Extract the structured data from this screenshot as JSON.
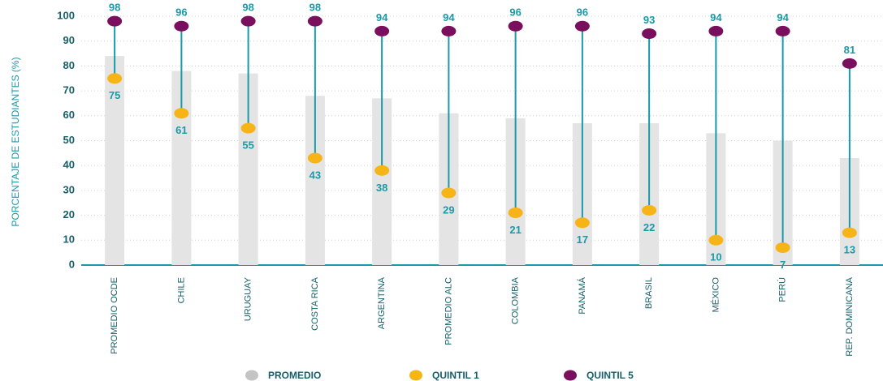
{
  "chart_data": {
    "type": "dumbbell",
    "ylabel": "PORCENTAJE DE ESTUDIANTES (%)",
    "categories": [
      "PROMEDIO OCDE",
      "CHILE",
      "URUGUAY",
      "COSTA RICA",
      "ARGENTINA",
      "PROMEDIO ALC",
      "COLOMBIA",
      "PANAMÁ",
      "BRASIL",
      "MÉXICO",
      "PERÚ",
      "REP. DOMINICANA"
    ],
    "series": [
      {
        "name": "PROMEDIO",
        "color": "#e4e4e4",
        "values": [
          84,
          78,
          77,
          68,
          67,
          61,
          59,
          57,
          57,
          53,
          50,
          43
        ]
      },
      {
        "name": "QUINTIL 1",
        "color": "#f7b417",
        "values": [
          75,
          61,
          55,
          43,
          38,
          29,
          21,
          17,
          22,
          10,
          7,
          13
        ]
      },
      {
        "name": "QUINTIL 5",
        "color": "#7a0f5e",
        "values": [
          98,
          96,
          98,
          98,
          94,
          94,
          96,
          96,
          93,
          94,
          94,
          81
        ]
      }
    ],
    "connector_color": "#1a9aa8",
    "ylim": [
      0,
      100
    ],
    "yticks": [
      0,
      10,
      20,
      30,
      40,
      50,
      60,
      70,
      80,
      90,
      100
    ],
    "grid": true,
    "legend": "bottom"
  }
}
